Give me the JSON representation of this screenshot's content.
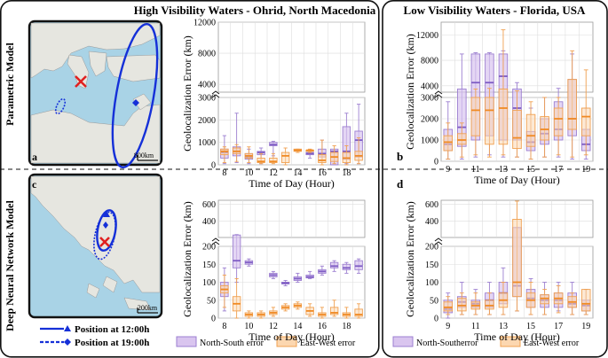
{
  "titles": {
    "left": "High Visibility Waters - Ohrid, North Macedonia",
    "right": "Low Visibility Waters - Florida, USA"
  },
  "row_labels": {
    "top": "Parametric Model",
    "bottom": "Deep Neural Network Model"
  },
  "maps": {
    "a": {
      "letter": "a",
      "scale": "800km"
    },
    "c": {
      "letter": "c",
      "scale": "200km"
    }
  },
  "legend": {
    "solid": "Position at 12:00h",
    "dashed": "Position at 19:00h",
    "ns": "North-South error",
    "ew": "East-West error",
    "ns_right": "North-Southerror",
    "ew_right": "East-West error"
  },
  "colors": {
    "ns_fill": "#d9c5ef",
    "ns_edge": "#9c7fd0",
    "ns_median": "#7e5cc4",
    "ew_fill": "#fcd7b0",
    "ew_edge": "#f0a050",
    "ew_median": "#f08a24",
    "overlap": "#c9a8c4",
    "marker_blue": "#1530d8",
    "marker_red": "#e02020",
    "sea": "#a9d3e6",
    "land": "#e6e6e0"
  },
  "chart_data": [
    {
      "id": "a",
      "type": "box",
      "panel_letter": "",
      "xlabel": "Time of Day (Hour)",
      "ylabel": "Geolocalization Error (km)",
      "x": [
        8,
        9,
        10,
        11,
        12,
        13,
        14,
        15,
        16,
        17,
        18,
        19
      ],
      "xticks": [
        "8",
        "10",
        "12",
        "14",
        "16",
        "18"
      ],
      "ylim_low": [
        0,
        3000
      ],
      "ylim_high": [
        3000,
        12000
      ],
      "yticks_low": [
        "0",
        "1000",
        "2000",
        "3000"
      ],
      "yticks_high": [
        "4000",
        "8000",
        "12000"
      ],
      "series": [
        {
          "name": "North-South error",
          "boxes": [
            [
              50,
              300,
              550,
              700,
              1300
            ],
            [
              100,
              400,
              600,
              800,
              2300
            ],
            [
              50,
              250,
              350,
              500,
              700
            ],
            [
              50,
              450,
              550,
              600,
              750
            ],
            [
              400,
              850,
              900,
              1000,
              1050
            ],
            [
              0,
              0,
              0,
              0,
              0
            ],
            [
              0,
              0,
              0,
              0,
              0
            ],
            [
              300,
              450,
              500,
              550,
              600
            ],
            [
              200,
              350,
              500,
              700,
              1100
            ],
            [
              0,
              0,
              600,
              700,
              0
            ],
            [
              50,
              250,
              600,
              1700,
              2300
            ],
            [
              50,
              350,
              1100,
              1500,
              2700
            ]
          ]
        },
        {
          "name": "East-West error",
          "boxes": [
            [
              100,
              450,
              600,
              700,
              800
            ],
            [
              150,
              500,
              600,
              750,
              900
            ],
            [
              100,
              300,
              400,
              500,
              800
            ],
            [
              50,
              100,
              150,
              300,
              500
            ],
            [
              50,
              100,
              150,
              300,
              500
            ],
            [
              0,
              100,
              400,
              550,
              750
            ],
            [
              550,
              600,
              650,
              700,
              700
            ],
            [
              550,
              600,
              650,
              650,
              700
            ],
            [
              0,
              100,
              200,
              450,
              1100
            ],
            [
              50,
              150,
              350,
              550,
              850
            ],
            [
              0,
              100,
              300,
              550,
              850
            ],
            [
              50,
              200,
              400,
              600,
              1200
            ]
          ]
        }
      ]
    },
    {
      "id": "b",
      "type": "box",
      "panel_letter": "b",
      "xlabel": "Time of Day (Hour)",
      "ylabel": "Geolocalization Error (km)",
      "x": [
        9,
        10,
        11,
        12,
        13,
        14,
        15,
        16,
        17,
        18,
        19
      ],
      "xticks": [
        "9",
        "11",
        "13",
        "15",
        "17",
        "19"
      ],
      "ylim_low": [
        0,
        3000
      ],
      "ylim_high": [
        3000,
        14000
      ],
      "yticks_low": [
        "0",
        "1000",
        "2000",
        "3000"
      ],
      "yticks_high": [
        "4000",
        "8000",
        "12000"
      ],
      "series": [
        {
          "name": "North-South error",
          "boxes": [
            [
              100,
              500,
              800,
              1500,
              2800
            ],
            [
              100,
              700,
              1600,
              3500,
              9000
            ],
            [
              200,
              1000,
              4500,
              9000,
              9200
            ],
            [
              300,
              1200,
              4500,
              9000,
              9200
            ],
            [
              200,
              1000,
              5500,
              9000,
              9500
            ],
            [
              200,
              1000,
              2500,
              3500,
              4500
            ],
            [
              100,
              500,
              900,
              1400,
              2500
            ],
            [
              200,
              800,
              1300,
              2000,
              3000
            ],
            [
              200,
              1000,
              1500,
              2800,
              3600
            ],
            [
              100,
              1200,
              2000,
              5000,
              9000
            ],
            [
              100,
              500,
              800,
              1500,
              2500
            ]
          ]
        },
        {
          "name": "East-West error",
          "boxes": [
            [
              100,
              500,
              900,
              1200,
              1800
            ],
            [
              200,
              800,
              1000,
              1300,
              1800
            ],
            [
              300,
              1200,
              2400,
              3000,
              3500
            ],
            [
              200,
              800,
              2400,
              3000,
              3600
            ],
            [
              300,
              800,
              2500,
              3500,
              12800
            ],
            [
              200,
              600,
              1100,
              2400,
              3200
            ],
            [
              100,
              700,
              1200,
              2200,
              2800
            ],
            [
              200,
              1000,
              1500,
              2100,
              3000
            ],
            [
              300,
              1200,
              2000,
              2500,
              3000
            ],
            [
              200,
              1500,
              2000,
              5000,
              9500
            ],
            [
              300,
              1200,
              2100,
              2500,
              6500
            ]
          ]
        }
      ]
    },
    {
      "id": "c",
      "type": "box",
      "panel_letter": "",
      "xlabel": "Time of Day (Hour)",
      "ylabel": "Geolocalization Error (km)",
      "x": [
        8,
        9,
        10,
        11,
        12,
        13,
        14,
        15,
        16,
        17,
        18,
        19
      ],
      "xticks": [
        "8",
        "10",
        "12",
        "14",
        "16",
        "18"
      ],
      "ylim_low": [
        0,
        200
      ],
      "ylim_high": [
        200,
        650
      ],
      "yticks_low": [
        "0",
        "50",
        "100",
        "150",
        "200"
      ],
      "yticks_high": [
        "400",
        "600"
      ],
      "series": [
        {
          "name": "North-South error",
          "boxes": [
            [
              20,
              60,
              80,
              100,
              140
            ],
            [
              100,
              140,
              160,
              230,
              235
            ],
            [
              145,
              150,
              155,
              160,
              165
            ],
            [
              0,
              0,
              0,
              0,
              0
            ],
            [
              110,
              115,
              120,
              125,
              130
            ],
            [
              90,
              95,
              98,
              100,
              105
            ],
            [
              100,
              105,
              110,
              115,
              125
            ],
            [
              110,
              112,
              115,
              120,
              130
            ],
            [
              120,
              125,
              130,
              135,
              145
            ],
            [
              130,
              140,
              145,
              155,
              160
            ],
            [
              125,
              135,
              140,
              150,
              155
            ],
            [
              125,
              135,
              145,
              160,
              165
            ]
          ]
        },
        {
          "name": "East-West error",
          "boxes": [
            [
              30,
              70,
              80,
              90,
              120
            ],
            [
              0,
              20,
              40,
              60,
              110
            ],
            [
              0,
              5,
              10,
              15,
              20
            ],
            [
              0,
              5,
              10,
              15,
              20
            ],
            [
              5,
              10,
              15,
              20,
              30
            ],
            [
              20,
              25,
              30,
              35,
              40
            ],
            [
              25,
              30,
              35,
              40,
              45
            ],
            [
              5,
              10,
              20,
              30,
              40
            ],
            [
              0,
              5,
              10,
              15,
              30
            ],
            [
              5,
              10,
              15,
              30,
              50
            ],
            [
              0,
              5,
              10,
              15,
              30
            ],
            [
              0,
              5,
              10,
              25,
              40
            ]
          ]
        }
      ]
    },
    {
      "id": "d",
      "type": "box",
      "panel_letter": "d",
      "xlabel": "Time of Day (Hour)",
      "ylabel": "Geolocalization Error (km)",
      "x": [
        9,
        10,
        11,
        12,
        13,
        14,
        15,
        16,
        17,
        18,
        19
      ],
      "xticks": [
        "9",
        "11",
        "13",
        "15",
        "17",
        "19"
      ],
      "ylim_low": [
        0,
        200
      ],
      "ylim_high": [
        200,
        650
      ],
      "yticks_low": [
        "0",
        "50",
        "100",
        "150",
        "200"
      ],
      "yticks_high": [
        "400",
        "600"
      ],
      "series": [
        {
          "name": "North-South error",
          "boxes": [
            [
              0,
              15,
              25,
              50,
              70
            ],
            [
              10,
              30,
              45,
              60,
              100
            ],
            [
              10,
              30,
              40,
              50,
              80
            ],
            [
              10,
              30,
              50,
              70,
              100
            ],
            [
              10,
              40,
              70,
              100,
              140
            ],
            [
              20,
              60,
              90,
              320,
              320
            ],
            [
              10,
              30,
              55,
              80,
              110
            ],
            [
              10,
              30,
              50,
              65,
              100
            ],
            [
              20,
              30,
              50,
              70,
              100
            ],
            [
              10,
              30,
              40,
              70,
              100
            ],
            [
              10,
              20,
              35,
              50,
              80
            ]
          ]
        },
        {
          "name": "East-West error",
          "boxes": [
            [
              10,
              20,
              30,
              45,
              60
            ],
            [
              10,
              20,
              35,
              55,
              70
            ],
            [
              10,
              25,
              35,
              45,
              70
            ],
            [
              10,
              25,
              35,
              50,
              70
            ],
            [
              10,
              30,
              50,
              70,
              100
            ],
            [
              20,
              60,
              100,
              420,
              640
            ],
            [
              10,
              30,
              50,
              70,
              100
            ],
            [
              10,
              40,
              55,
              65,
              80
            ],
            [
              15,
              40,
              55,
              70,
              90
            ],
            [
              10,
              30,
              45,
              60,
              70
            ],
            [
              10,
              20,
              40,
              80,
              80
            ]
          ]
        }
      ]
    }
  ]
}
